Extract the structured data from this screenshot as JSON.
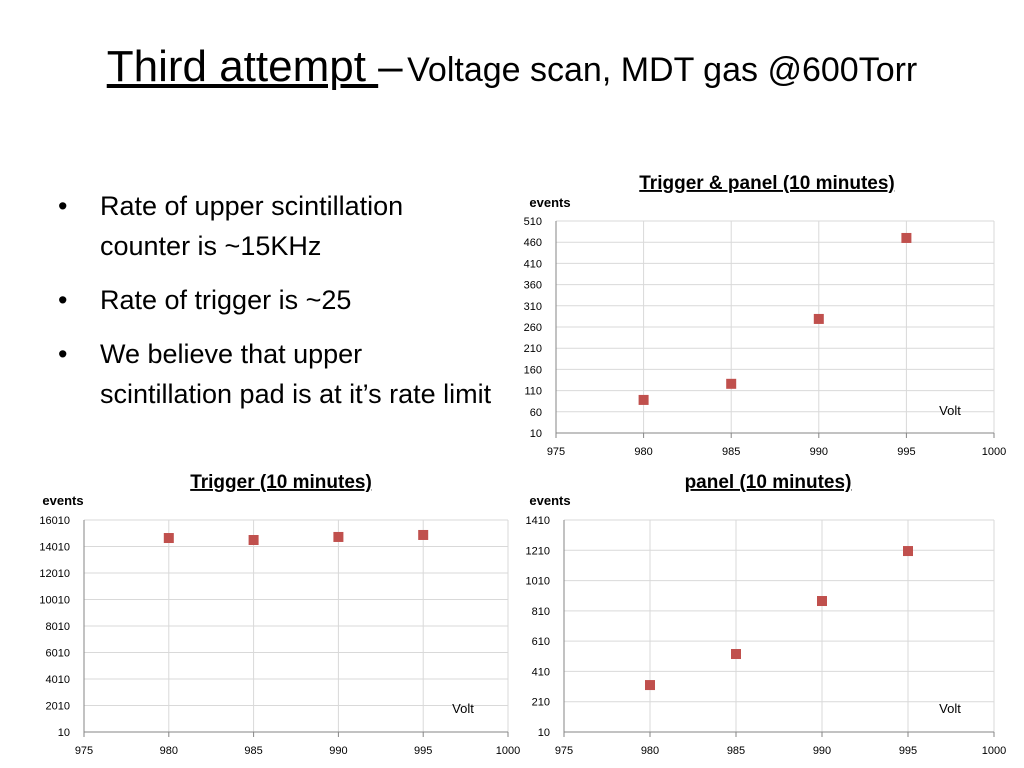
{
  "header": {
    "title_main": "Third attempt ",
    "title_dash": "–",
    "title_sub": "Voltage scan, MDT gas @600Torr"
  },
  "bullets": [
    "Rate of upper scintillation counter is ~15KHz",
    "Rate of trigger is ~25",
    "We believe that upper scintillation pad is at it’s rate limit"
  ],
  "chart_data": [
    {
      "type": "scatter",
      "title": "Trigger & panel (10 minutes)",
      "y_label": "events",
      "x_label": "Volt",
      "x": [
        980,
        985,
        990,
        995
      ],
      "series": [
        {
          "color": "#c0504d",
          "values": [
            88,
            126,
            279,
            470
          ]
        }
      ],
      "xlim": [
        975,
        1000
      ],
      "xticks": [
        975,
        980,
        985,
        990,
        995,
        1000
      ],
      "ylim": [
        10,
        510
      ],
      "yticks": [
        10,
        60,
        110,
        160,
        210,
        260,
        310,
        360,
        410,
        460,
        510
      ],
      "grid": true
    },
    {
      "type": "scatter",
      "title": "Trigger (10 minutes)",
      "y_label": "events",
      "x_label": "Volt",
      "x": [
        980,
        985,
        990,
        995
      ],
      "series": [
        {
          "color": "#c0504d",
          "values": [
            14650,
            14500,
            14730,
            14880
          ]
        }
      ],
      "xlim": [
        975,
        1000
      ],
      "xticks": [
        975,
        980,
        985,
        990,
        995,
        1000
      ],
      "ylim": [
        10,
        16010
      ],
      "yticks": [
        10,
        2010,
        4010,
        6010,
        8010,
        10010,
        12010,
        14010,
        16010
      ],
      "grid": true
    },
    {
      "type": "scatter",
      "title": "panel (10 minutes)",
      "y_label": "events",
      "x_label": "Volt",
      "x": [
        980,
        985,
        990,
        995
      ],
      "series": [
        {
          "color": "#c0504d",
          "values": [
            320,
            525,
            875,
            1205
          ]
        }
      ],
      "xlim": [
        975,
        1000
      ],
      "xticks": [
        975,
        980,
        985,
        990,
        995,
        1000
      ],
      "ylim": [
        10,
        1410
      ],
      "yticks": [
        10,
        210,
        410,
        610,
        810,
        1010,
        1210,
        1410
      ],
      "grid": true
    }
  ]
}
